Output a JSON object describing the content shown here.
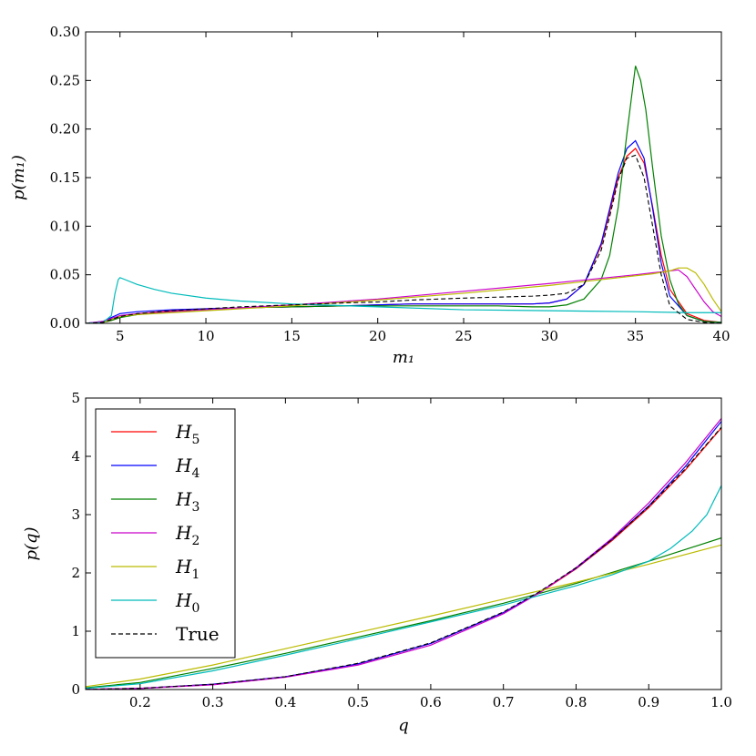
{
  "chart_data": [
    {
      "type": "line",
      "xlabel": "m₁",
      "ylabel": "p(m₁)",
      "xlim": [
        3,
        40
      ],
      "ylim": [
        0,
        0.3
      ],
      "xticks": [
        5,
        10,
        15,
        20,
        25,
        30,
        35,
        40
      ],
      "xtick_labels": [
        "5",
        "10",
        "15",
        "20",
        "25",
        "30",
        "35",
        "40"
      ],
      "yticks": [
        0,
        0.05,
        0.1,
        0.15,
        0.2,
        0.25,
        0.3
      ],
      "ytick_labels": [
        "0.00",
        "0.05",
        "0.10",
        "0.15",
        "0.20",
        "0.25",
        "0.30"
      ],
      "grid": false,
      "series": [
        {
          "name": "H5",
          "color": "#ff0000",
          "dashed": false,
          "x": [
            3,
            4,
            4.5,
            5,
            6,
            8,
            10,
            12,
            15,
            18,
            20,
            22,
            25,
            27,
            29,
            30,
            31,
            32,
            33,
            33.5,
            34,
            34.5,
            35,
            35.5,
            36,
            36.5,
            37,
            38,
            39,
            40
          ],
          "y": [
            0,
            0.001,
            0.003,
            0.006,
            0.01,
            0.013,
            0.015,
            0.016,
            0.017,
            0.018,
            0.019,
            0.02,
            0.02,
            0.02,
            0.02,
            0.021,
            0.025,
            0.04,
            0.08,
            0.115,
            0.15,
            0.172,
            0.18,
            0.165,
            0.12,
            0.07,
            0.035,
            0.01,
            0.003,
            0.001
          ]
        },
        {
          "name": "H4",
          "color": "#0000ff",
          "dashed": false,
          "x": [
            3,
            4,
            4.5,
            5,
            6,
            8,
            10,
            12,
            15,
            18,
            20,
            22,
            25,
            27,
            29,
            30,
            31,
            32,
            33,
            33.5,
            34,
            34.5,
            35,
            35.5,
            36,
            36.5,
            37,
            38,
            39,
            40
          ],
          "y": [
            0,
            0.002,
            0.006,
            0.01,
            0.012,
            0.014,
            0.015,
            0.016,
            0.017,
            0.018,
            0.019,
            0.02,
            0.02,
            0.02,
            0.02,
            0.021,
            0.025,
            0.04,
            0.082,
            0.118,
            0.155,
            0.18,
            0.188,
            0.17,
            0.118,
            0.062,
            0.028,
            0.008,
            0.002,
            0.001
          ]
        },
        {
          "name": "H3",
          "color": "#008000",
          "dashed": false,
          "x": [
            3,
            4,
            4.5,
            5,
            6,
            8,
            10,
            12,
            15,
            18,
            20,
            22,
            25,
            27,
            29,
            30,
            31,
            32,
            33,
            33.5,
            34,
            34.5,
            35,
            35.3,
            35.6,
            36,
            36.5,
            37,
            37.5,
            38,
            39,
            40
          ],
          "y": [
            0,
            0.001,
            0.003,
            0.006,
            0.009,
            0.012,
            0.014,
            0.016,
            0.017,
            0.018,
            0.018,
            0.018,
            0.018,
            0.018,
            0.017,
            0.017,
            0.019,
            0.025,
            0.045,
            0.07,
            0.12,
            0.195,
            0.265,
            0.25,
            0.22,
            0.16,
            0.09,
            0.045,
            0.02,
            0.008,
            0.002,
            0.001
          ]
        },
        {
          "name": "H2",
          "color": "#cc00cc",
          "dashed": false,
          "x": [
            3,
            4,
            4.5,
            5,
            6,
            8,
            10,
            15,
            20,
            25,
            30,
            35,
            36,
            36.5,
            37,
            37.5,
            38,
            38.5,
            39,
            39.5,
            40
          ],
          "y": [
            0,
            0.002,
            0.005,
            0.008,
            0.01,
            0.012,
            0.014,
            0.019,
            0.025,
            0.033,
            0.041,
            0.05,
            0.052,
            0.053,
            0.054,
            0.055,
            0.048,
            0.035,
            0.022,
            0.012,
            0.007
          ]
        },
        {
          "name": "H1",
          "color": "#bbbb00",
          "dashed": false,
          "x": [
            3,
            4,
            4.5,
            5,
            6,
            8,
            10,
            15,
            20,
            25,
            30,
            35,
            36,
            37,
            37.5,
            38,
            38.5,
            39,
            39.5,
            40
          ],
          "y": [
            0,
            0.001,
            0.004,
            0.007,
            0.009,
            0.011,
            0.013,
            0.018,
            0.024,
            0.031,
            0.039,
            0.049,
            0.051,
            0.054,
            0.057,
            0.057,
            0.052,
            0.04,
            0.025,
            0.012
          ]
        },
        {
          "name": "H0",
          "color": "#00bbbb",
          "dashed": false,
          "x": [
            3,
            4,
            4.5,
            4.7,
            4.9,
            5.0,
            5.3,
            6,
            7,
            8,
            10,
            12,
            15,
            20,
            25,
            30,
            35,
            38,
            40
          ],
          "y": [
            0,
            0.001,
            0.008,
            0.03,
            0.045,
            0.047,
            0.045,
            0.04,
            0.035,
            0.031,
            0.026,
            0.023,
            0.02,
            0.017,
            0.014,
            0.013,
            0.012,
            0.011,
            0.011
          ]
        },
        {
          "name": "True",
          "color": "#000000",
          "dashed": true,
          "x": [
            3,
            4,
            4.5,
            5,
            6,
            8,
            10,
            12,
            15,
            18,
            20,
            22,
            25,
            27,
            29,
            30,
            31,
            32,
            33,
            33.5,
            34,
            34.5,
            35,
            35.5,
            36,
            36.5,
            37,
            38,
            39,
            40
          ],
          "y": [
            0,
            0.001,
            0.004,
            0.007,
            0.01,
            0.013,
            0.015,
            0.017,
            0.019,
            0.021,
            0.022,
            0.024,
            0.026,
            0.027,
            0.028,
            0.029,
            0.031,
            0.04,
            0.075,
            0.11,
            0.148,
            0.17,
            0.173,
            0.15,
            0.1,
            0.05,
            0.018,
            0.004,
            0.001,
            0
          ]
        }
      ]
    },
    {
      "type": "line",
      "xlabel": "q",
      "ylabel": "p(q)",
      "xlim": [
        0.125,
        1.0
      ],
      "ylim": [
        0,
        5
      ],
      "xticks": [
        0.2,
        0.3,
        0.4,
        0.5,
        0.6,
        0.7,
        0.8,
        0.9,
        1.0
      ],
      "xtick_labels": [
        "0.2",
        "0.3",
        "0.4",
        "0.5",
        "0.6",
        "0.7",
        "0.8",
        "0.9",
        "1.0"
      ],
      "yticks": [
        0,
        1,
        2,
        3,
        4,
        5
      ],
      "ytick_labels": [
        "0",
        "1",
        "2",
        "3",
        "4",
        "5"
      ],
      "grid": false,
      "legend": {
        "position": "upper-left",
        "entries": [
          {
            "base": "H",
            "sub": "5",
            "color": "#ff0000",
            "dashed": false
          },
          {
            "base": "H",
            "sub": "4",
            "color": "#0000ff",
            "dashed": false
          },
          {
            "base": "H",
            "sub": "3",
            "color": "#008000",
            "dashed": false
          },
          {
            "base": "H",
            "sub": "2",
            "color": "#cc00cc",
            "dashed": false
          },
          {
            "base": "H",
            "sub": "1",
            "color": "#bbbb00",
            "dashed": false
          },
          {
            "base": "H",
            "sub": "0",
            "color": "#00bbbb",
            "dashed": false
          },
          {
            "base": "True",
            "sub": "",
            "color": "#000000",
            "dashed": true
          }
        ]
      },
      "series": [
        {
          "name": "H5",
          "color": "#ff0000",
          "dashed": false,
          "x": [
            0.125,
            0.2,
            0.3,
            0.4,
            0.5,
            0.6,
            0.7,
            0.75,
            0.8,
            0.85,
            0.9,
            0.95,
            1.0
          ],
          "y": [
            0.003,
            0.02,
            0.09,
            0.22,
            0.44,
            0.79,
            1.32,
            1.66,
            2.07,
            2.56,
            3.12,
            3.76,
            4.49
          ]
        },
        {
          "name": "H4",
          "color": "#0000ff",
          "dashed": false,
          "x": [
            0.125,
            0.2,
            0.3,
            0.4,
            0.5,
            0.6,
            0.7,
            0.75,
            0.8,
            0.85,
            0.9,
            0.95,
            1.0
          ],
          "y": [
            0.003,
            0.02,
            0.09,
            0.22,
            0.44,
            0.79,
            1.32,
            1.67,
            2.08,
            2.58,
            3.15,
            3.82,
            4.6
          ]
        },
        {
          "name": "H3",
          "color": "#008000",
          "dashed": false,
          "x": [
            0.125,
            0.2,
            0.3,
            0.4,
            0.5,
            0.6,
            0.7,
            0.8,
            0.9,
            1.0
          ],
          "y": [
            0.03,
            0.12,
            0.36,
            0.62,
            0.9,
            1.18,
            1.48,
            1.82,
            2.2,
            2.6
          ]
        },
        {
          "name": "H2",
          "color": "#cc00cc",
          "dashed": false,
          "x": [
            0.125,
            0.2,
            0.3,
            0.4,
            0.5,
            0.6,
            0.7,
            0.75,
            0.8,
            0.85,
            0.9,
            0.95,
            1.0
          ],
          "y": [
            0.003,
            0.02,
            0.08,
            0.21,
            0.42,
            0.76,
            1.3,
            1.66,
            2.09,
            2.6,
            3.2,
            3.88,
            4.65
          ]
        },
        {
          "name": "H1",
          "color": "#bbbb00",
          "dashed": false,
          "x": [
            0.125,
            0.2,
            0.3,
            0.4,
            0.5,
            0.6,
            0.7,
            0.8,
            0.9,
            1.0
          ],
          "y": [
            0.05,
            0.18,
            0.42,
            0.7,
            0.98,
            1.26,
            1.55,
            1.84,
            2.15,
            2.48
          ]
        },
        {
          "name": "H0",
          "color": "#00bbbb",
          "dashed": false,
          "x": [
            0.125,
            0.2,
            0.3,
            0.4,
            0.5,
            0.6,
            0.7,
            0.8,
            0.85,
            0.9,
            0.93,
            0.96,
            0.98,
            1.0
          ],
          "y": [
            0.02,
            0.1,
            0.32,
            0.59,
            0.87,
            1.16,
            1.45,
            1.78,
            1.97,
            2.2,
            2.42,
            2.72,
            3.0,
            3.5
          ]
        },
        {
          "name": "True",
          "color": "#000000",
          "dashed": true,
          "x": [
            0.125,
            0.2,
            0.3,
            0.4,
            0.5,
            0.6,
            0.7,
            0.75,
            0.8,
            0.85,
            0.9,
            0.95,
            1.0
          ],
          "y": [
            0.003,
            0.02,
            0.09,
            0.22,
            0.45,
            0.8,
            1.33,
            1.68,
            2.09,
            2.58,
            3.14,
            3.78,
            4.5
          ]
        }
      ]
    }
  ]
}
